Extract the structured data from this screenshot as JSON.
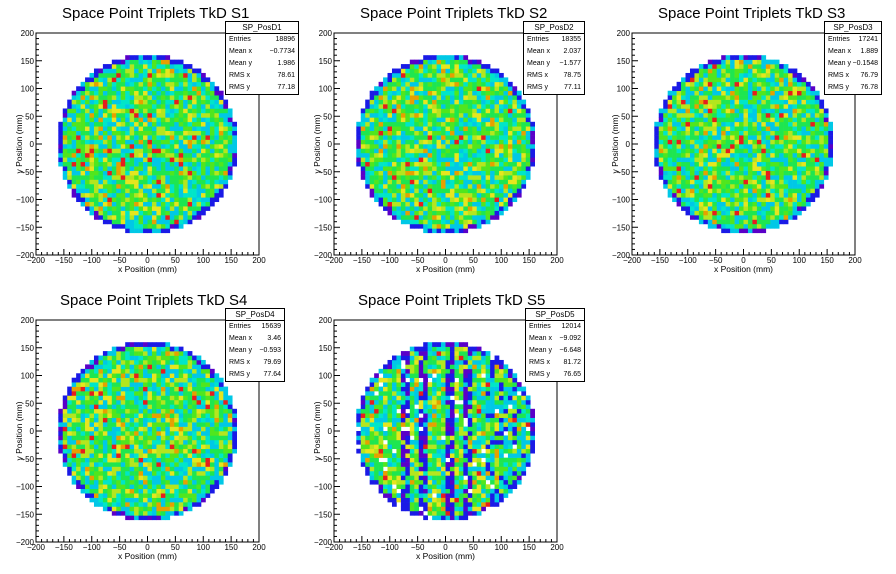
{
  "canvas_background": "#ffffff",
  "palette": [
    "#5a00c8",
    "#1a1ae6",
    "#00c8e6",
    "#00e6c8",
    "#1ee650",
    "#50e61e",
    "#b4e61e",
    "#e6e61e",
    "#e6a000",
    "#e61e1e"
  ],
  "chart_data": [
    {
      "type": "heatmap",
      "title": "Space Point Triplets TkD S1",
      "xlabel": "x Position (mm)",
      "ylabel": "y Position (mm)",
      "xlim": [
        -200,
        200
      ],
      "ylim": [
        -200,
        200
      ],
      "xticks": [
        "−200",
        "−150",
        "−100",
        "−50",
        "0",
        "50",
        "100",
        "150",
        "200"
      ],
      "yticks": [
        "−200",
        "−150",
        "−100",
        "−50",
        "0",
        "50",
        "100",
        "150",
        "200"
      ],
      "distribution": {
        "shape": "disk",
        "center": [
          0,
          0
        ],
        "radius_mm": 160,
        "bin_mm": 8
      },
      "stats": {
        "name": "SP_PosD1",
        "rows": [
          {
            "label": "Entries",
            "value": "18896"
          },
          {
            "label": "Mean x",
            "value": "−0.7734"
          },
          {
            "label": "Mean y",
            "value": "1.986"
          },
          {
            "label": "RMS x",
            "value": "78.61"
          },
          {
            "label": "RMS y",
            "value": "77.18"
          }
        ]
      }
    },
    {
      "type": "heatmap",
      "title": "Space Point Triplets TkD S2",
      "xlabel": "x Position (mm)",
      "ylabel": "y Position (mm)",
      "xlim": [
        -200,
        200
      ],
      "ylim": [
        -200,
        200
      ],
      "xticks": [
        "−200",
        "−150",
        "−100",
        "−50",
        "0",
        "50",
        "100",
        "150",
        "200"
      ],
      "yticks": [
        "−200",
        "−150",
        "−100",
        "−50",
        "0",
        "50",
        "100",
        "150",
        "200"
      ],
      "distribution": {
        "shape": "disk",
        "center": [
          0,
          0
        ],
        "radius_mm": 160,
        "bin_mm": 8
      },
      "stats": {
        "name": "SP_PosD2",
        "rows": [
          {
            "label": "Entries",
            "value": "18355"
          },
          {
            "label": "Mean x",
            "value": "2.037"
          },
          {
            "label": "Mean y",
            "value": "−1.577"
          },
          {
            "label": "RMS x",
            "value": "78.75"
          },
          {
            "label": "RMS y",
            "value": "77.11"
          }
        ]
      }
    },
    {
      "type": "heatmap",
      "title": "Space Point Triplets TkD S3",
      "xlabel": "x Position (mm)",
      "ylabel": "y Position (mm)",
      "xlim": [
        -200,
        200
      ],
      "ylim": [
        -200,
        200
      ],
      "xticks": [
        "−200",
        "−150",
        "−100",
        "−50",
        "0",
        "50",
        "100",
        "150",
        "200"
      ],
      "yticks": [
        "−200",
        "−150",
        "−100",
        "−50",
        "0",
        "50",
        "100",
        "150",
        "200"
      ],
      "distribution": {
        "shape": "disk",
        "center": [
          0,
          0
        ],
        "radius_mm": 160,
        "bin_mm": 8
      },
      "stats": {
        "name": "SP_PosD3",
        "rows": [
          {
            "label": "Entries",
            "value": "17241"
          },
          {
            "label": "Mean x",
            "value": "1.889"
          },
          {
            "label": "Mean y",
            "value": "−0.1548"
          },
          {
            "label": "RMS x",
            "value": "76.79"
          },
          {
            "label": "RMS y",
            "value": "76.78"
          }
        ]
      }
    },
    {
      "type": "heatmap",
      "title": "Space Point Triplets TkD S4",
      "xlabel": "x Position (mm)",
      "ylabel": "y Position (mm)",
      "xlim": [
        -200,
        200
      ],
      "ylim": [
        -200,
        200
      ],
      "xticks": [
        "−200",
        "−150",
        "−100",
        "−50",
        "0",
        "50",
        "100",
        "150",
        "200"
      ],
      "yticks": [
        "−200",
        "−150",
        "−100",
        "−50",
        "0",
        "50",
        "100",
        "150",
        "200"
      ],
      "distribution": {
        "shape": "disk",
        "center": [
          0,
          0
        ],
        "radius_mm": 160,
        "bin_mm": 8
      },
      "stats": {
        "name": "SP_PosD4",
        "rows": [
          {
            "label": "Entries",
            "value": "15639"
          },
          {
            "label": "Mean x",
            "value": "3.46"
          },
          {
            "label": "Mean y",
            "value": "−0.593"
          },
          {
            "label": "RMS x",
            "value": "79.69"
          },
          {
            "label": "RMS y",
            "value": "77.64"
          }
        ]
      }
    },
    {
      "type": "heatmap",
      "title": "Space Point Triplets TkD S5",
      "xlabel": "x Position (mm)",
      "ylabel": "y Position (mm)",
      "xlim": [
        -200,
        200
      ],
      "ylim": [
        -200,
        200
      ],
      "xticks": [
        "−200",
        "−150",
        "−100",
        "−50",
        "0",
        "50",
        "100",
        "150",
        "200"
      ],
      "yticks": [
        "−200",
        "−150",
        "−100",
        "−50",
        "0",
        "50",
        "100",
        "150",
        "200"
      ],
      "distribution": {
        "shape": "disk",
        "center": [
          0,
          0
        ],
        "radius_mm": 160,
        "bin_mm": 8,
        "blue_stripes_x_mm": [
          -72,
          -40,
          8,
          40
        ],
        "sparse_region": "right side"
      },
      "stats": {
        "name": "SP_PosD5",
        "rows": [
          {
            "label": "Entries",
            "value": "12014"
          },
          {
            "label": "Mean x",
            "value": "−9.092"
          },
          {
            "label": "Mean y",
            "value": "−6.648"
          },
          {
            "label": "RMS x",
            "value": "81.72"
          },
          {
            "label": "RMS y",
            "value": "76.65"
          }
        ]
      }
    }
  ]
}
